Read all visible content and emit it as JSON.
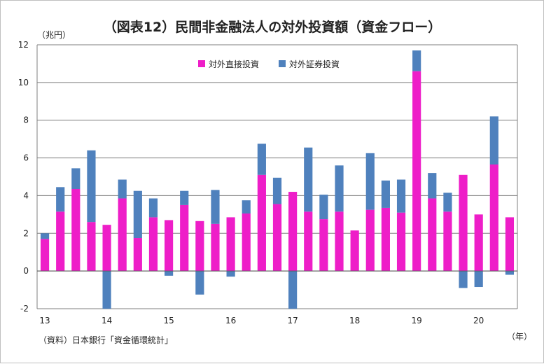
{
  "chart_data": {
    "type": "bar",
    "stacked": true,
    "title": "（図表12）民間非金融法人の対外投資額（資金フロー）",
    "y_unit": "（兆円）",
    "x_unit": "（年）",
    "source": "（資料）日本銀行「資金循環統計」",
    "ylim": [
      -2,
      12
    ],
    "yticks": [
      -2,
      0,
      2,
      4,
      6,
      8,
      10,
      12
    ],
    "x_tick_labels": [
      {
        "label": "13",
        "index": 0
      },
      {
        "label": "14",
        "index": 4
      },
      {
        "label": "15",
        "index": 8
      },
      {
        "label": "16",
        "index": 12
      },
      {
        "label": "17",
        "index": 16
      },
      {
        "label": "18",
        "index": 20
      },
      {
        "label": "19",
        "index": 24
      },
      {
        "label": "20",
        "index": 28
      }
    ],
    "grid": true,
    "legend_position": "top",
    "series": [
      {
        "name": "対外直接投資",
        "color": "#ee1ec8",
        "values": [
          1.7,
          3.15,
          4.35,
          2.6,
          2.45,
          3.85,
          1.75,
          2.85,
          2.7,
          3.5,
          2.65,
          2.5,
          2.85,
          3.05,
          5.1,
          3.55,
          4.2,
          3.15,
          2.75,
          3.15,
          2.15,
          3.25,
          3.35,
          3.1,
          10.6,
          3.85,
          3.15,
          5.1,
          3.0,
          5.65,
          2.85
        ]
      },
      {
        "name": "対外証券投資",
        "color": "#4f81bd",
        "values": [
          0.3,
          1.3,
          1.1,
          3.8,
          -2.0,
          1.0,
          2.5,
          1.0,
          -0.25,
          0.75,
          -1.25,
          1.8,
          -0.3,
          0.7,
          1.65,
          1.4,
          -2.0,
          3.4,
          1.3,
          2.45,
          0.0,
          3.0,
          1.45,
          1.75,
          1.1,
          1.35,
          1.0,
          -0.9,
          -0.85,
          2.55,
          -0.2
        ]
      }
    ]
  }
}
